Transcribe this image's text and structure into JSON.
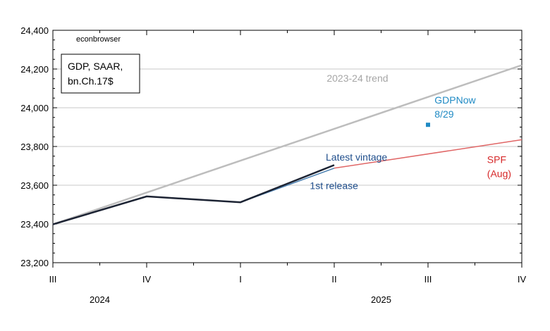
{
  "chart_data": {
    "type": "line",
    "watermark": "econbrowser",
    "legend_box": [
      "GDP, SAAR,",
      "bn.Ch.17$"
    ],
    "y_ticks": [
      23200,
      23400,
      23600,
      23800,
      24000,
      24200,
      24400
    ],
    "y_tick_labels": [
      "23,200",
      "23,400",
      "23,600",
      "23,800",
      "24,000",
      "24,200",
      "24,400"
    ],
    "ylim": [
      23200,
      24400
    ],
    "quarters": [
      "III",
      "IV",
      "I",
      "II",
      "III",
      "IV"
    ],
    "years": [
      {
        "label": "2024",
        "quarter_index": 0.5
      },
      {
        "label": "2025",
        "quarter_index": 3.5
      }
    ],
    "grid": true,
    "series": [
      {
        "key": "trend",
        "color": "#bdbdbd",
        "width": 2.5,
        "points": [
          [
            0,
            23398
          ],
          [
            5,
            24220
          ]
        ]
      },
      {
        "key": "first",
        "color": "#4a7fb0",
        "width": 1.5,
        "points": [
          [
            0,
            23398
          ],
          [
            1,
            23542
          ],
          [
            2,
            23512
          ],
          [
            3,
            23688
          ]
        ]
      },
      {
        "key": "latest",
        "color": "#1c2333",
        "width": 2.5,
        "points": [
          [
            0,
            23398
          ],
          [
            1,
            23542
          ],
          [
            2,
            23512
          ],
          [
            3,
            23704
          ]
        ]
      },
      {
        "key": "spf",
        "color": "#e06666",
        "width": 1.5,
        "points": [
          [
            3,
            23688
          ],
          [
            5,
            23835
          ]
        ]
      }
    ],
    "gdpnow_point": {
      "x": 4,
      "y": 23912,
      "color": "#1f8ac4"
    },
    "annotations": [
      {
        "key": "trend",
        "lines": [
          "2023-24 trend"
        ],
        "color": "#a6a6a6",
        "x": 2.92,
        "y": 24135
      },
      {
        "key": "gdpnow",
        "lines": [
          "GDPNow",
          "8/29"
        ],
        "color": "#1f8ac4",
        "x": 4.07,
        "y": 24022
      },
      {
        "key": "latest",
        "lines": [
          "Latest vintage"
        ],
        "color": "#1f4e8c",
        "x": 2.91,
        "y": 23728
      },
      {
        "key": "first",
        "lines": [
          "1st release"
        ],
        "color": "#1f4e8c",
        "x": 2.74,
        "y": 23580
      },
      {
        "key": "spf",
        "lines": [
          "SPF",
          "(Aug)"
        ],
        "color": "#d62728",
        "x": 4.63,
        "y": 23715
      }
    ]
  }
}
